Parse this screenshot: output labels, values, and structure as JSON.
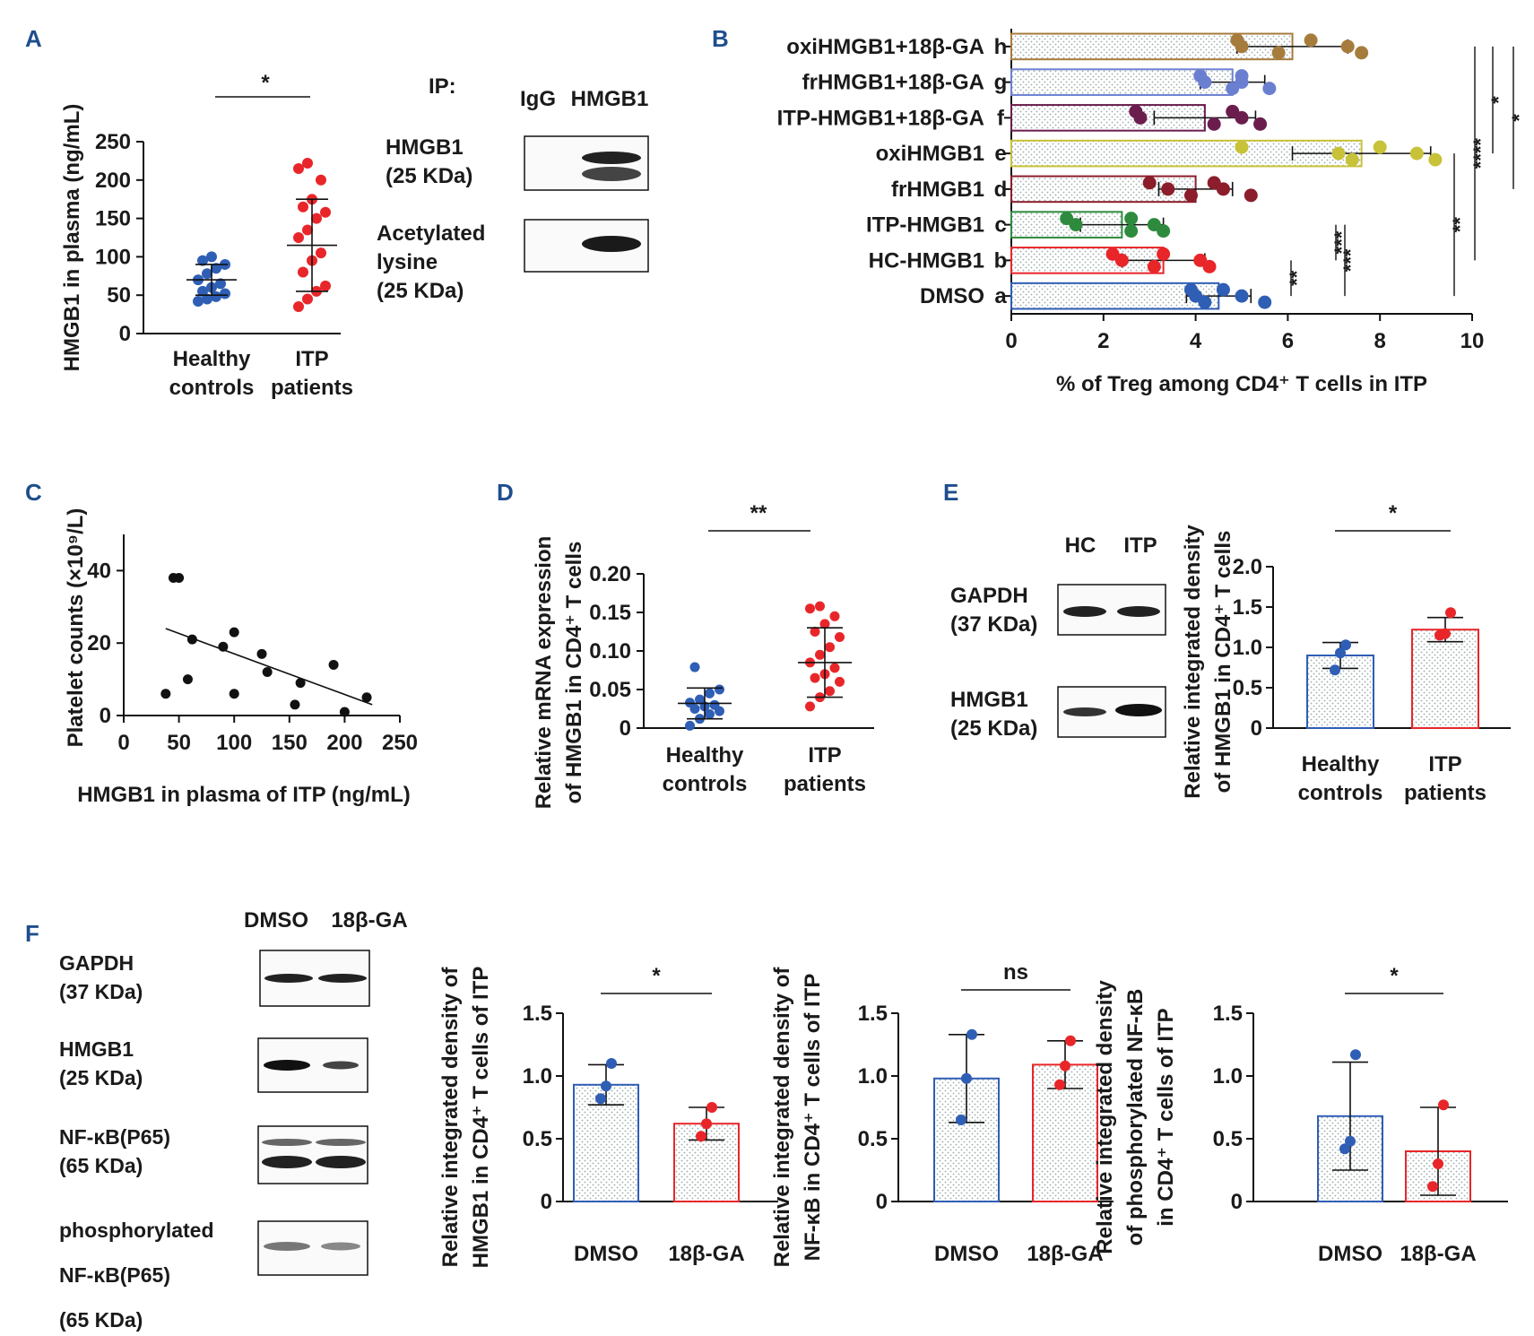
{
  "panels": {
    "A": {
      "letter": "A",
      "chart_data": {
        "type": "scatter",
        "ylabel": "HMGB1 in plasma (ng/mL)",
        "ylim": [
          0,
          250
        ],
        "yticks": [
          "0",
          "50",
          "100",
          "150",
          "200",
          "250"
        ],
        "categories": [
          "Healthy\ncontrols",
          "ITP\npatients"
        ],
        "groups": [
          {
            "name": "Healthy controls",
            "color": "#2f5eb5",
            "mean": 70,
            "sd": 20,
            "points": [
              42,
              45,
              48,
              52,
              55,
              60,
              65,
              70,
              78,
              85,
              90,
              95,
              100
            ]
          },
          {
            "name": "ITP patients",
            "color": "#e8262a",
            "mean": 115,
            "sd": 60,
            "points": [
              35,
              45,
              55,
              62,
              80,
              95,
              105,
              125,
              135,
              150,
              158,
              165,
              175,
              200,
              215,
              222
            ]
          }
        ],
        "significance": "*"
      },
      "blot": {
        "ip_label": "IP:",
        "lanes": [
          "IgG",
          "HMGB1"
        ],
        "rows": [
          "HMGB1\n(25 KDa)",
          "Acetylated\nlysine\n(25 KDa)"
        ]
      }
    },
    "B": {
      "letter": "B",
      "chart_data": {
        "type": "bar",
        "orientation": "horizontal",
        "xlabel": "% of Treg among CD4⁺ T cells in ITP",
        "xlim": [
          0,
          10
        ],
        "xticks": [
          "0",
          "2",
          "4",
          "6",
          "8",
          "10"
        ],
        "series": [
          {
            "name": "oxiHMGB1+18β-GA",
            "letter": "h",
            "value": 6.1,
            "sd": 1.2,
            "color": "#a67c3d",
            "points": [
              4.9,
              5.0,
              5.8,
              6.5,
              7.3,
              7.6
            ]
          },
          {
            "name": "frHMGB1+18β-GA",
            "letter": "g",
            "value": 4.8,
            "sd": 0.7,
            "color": "#6b7fd1",
            "points": [
              4.1,
              4.2,
              4.8,
              5.0,
              5.0,
              5.6
            ]
          },
          {
            "name": "ITP-HMGB1+18β-GA",
            "letter": "f",
            "value": 4.2,
            "sd": 1.1,
            "color": "#6b1e4e",
            "points": [
              2.7,
              2.8,
              4.4,
              4.8,
              5.0,
              5.4
            ]
          },
          {
            "name": "oxiHMGB1",
            "letter": "e",
            "value": 7.6,
            "sd": 1.5,
            "color": "#c7c238",
            "points": [
              5.0,
              7.1,
              7.4,
              8.0,
              8.8,
              9.2
            ]
          },
          {
            "name": "frHMGB1",
            "letter": "d",
            "value": 4.0,
            "sd": 0.8,
            "color": "#8c1d2b",
            "points": [
              3.0,
              3.4,
              3.9,
              4.4,
              4.6,
              5.2
            ]
          },
          {
            "name": "ITP-HMGB1",
            "letter": "c",
            "value": 2.4,
            "sd": 0.9,
            "color": "#2e8b3e",
            "points": [
              1.2,
              1.4,
              2.6,
              2.6,
              3.1,
              3.3
            ]
          },
          {
            "name": "HC-HMGB1",
            "letter": "b",
            "value": 3.3,
            "sd": 0.9,
            "color": "#e8262a",
            "points": [
              2.2,
              2.4,
              3.1,
              3.3,
              4.1,
              4.3
            ]
          },
          {
            "name": "DMSO",
            "letter": "a",
            "value": 4.5,
            "sd": 0.7,
            "color": "#2f5eb5",
            "points": [
              3.9,
              4.0,
              4.2,
              4.6,
              5.0,
              5.5
            ]
          }
        ],
        "significance": [
          {
            "from": "a",
            "to": "b",
            "label": "**"
          },
          {
            "from": "b",
            "to": "c",
            "label": "***"
          },
          {
            "from": "a",
            "to": "c",
            "label": "***"
          },
          {
            "from": "a",
            "to": "e",
            "label": "**"
          },
          {
            "from": "b",
            "to": "h",
            "label": "****"
          },
          {
            "from": "e",
            "to": "h",
            "label": "*"
          },
          {
            "from": "d",
            "to": "h",
            "label": "*"
          }
        ]
      }
    },
    "C": {
      "letter": "C",
      "chart_data": {
        "type": "scatter",
        "xlabel": "HMGB1 in plasma of ITP (ng/mL)",
        "ylabel": "Platelet counts (×10⁹/L)",
        "xlim": [
          0,
          250
        ],
        "ylim": [
          0,
          50
        ],
        "xticks": [
          "0",
          "50",
          "100",
          "150",
          "200",
          "250"
        ],
        "yticks": [
          "0",
          "20",
          "40"
        ],
        "points": [
          [
            38,
            6
          ],
          [
            45,
            38
          ],
          [
            50,
            38
          ],
          [
            58,
            10
          ],
          [
            62,
            21
          ],
          [
            90,
            19
          ],
          [
            100,
            6
          ],
          [
            100,
            23
          ],
          [
            125,
            17
          ],
          [
            130,
            12
          ],
          [
            155,
            3
          ],
          [
            160,
            9
          ],
          [
            190,
            14
          ],
          [
            200,
            1
          ],
          [
            220,
            5
          ]
        ],
        "fit": [
          [
            38,
            24
          ],
          [
            225,
            3
          ]
        ]
      }
    },
    "D": {
      "letter": "D",
      "chart_data": {
        "type": "scatter",
        "ylabel": "Relative mRNA expression\nof HMGB1  in CD4⁺ T cells",
        "ylim": [
          0,
          0.2
        ],
        "yticks": [
          "0",
          "0.05",
          "0.10",
          "0.15",
          "0.20"
        ],
        "categories": [
          "Healthy\ncontrols",
          "ITP\npatients"
        ],
        "groups": [
          {
            "name": "Healthy controls",
            "color": "#2f5eb5",
            "mean": 0.032,
            "sd": 0.02,
            "points": [
              0.003,
              0.012,
              0.018,
              0.022,
              0.025,
              0.028,
              0.03,
              0.033,
              0.037,
              0.045,
              0.05,
              0.079
            ]
          },
          {
            "name": "ITP patients",
            "color": "#e8262a",
            "mean": 0.085,
            "sd": 0.045,
            "points": [
              0.028,
              0.04,
              0.048,
              0.06,
              0.065,
              0.07,
              0.078,
              0.085,
              0.095,
              0.105,
              0.118,
              0.125,
              0.135,
              0.145,
              0.155,
              0.158
            ]
          }
        ],
        "significance": "**"
      }
    },
    "E": {
      "letter": "E",
      "blot": {
        "lanes": [
          "HC",
          "ITP"
        ],
        "rows": [
          "GAPDH\n(37 KDa)",
          "HMGB1\n(25 KDa)"
        ]
      },
      "chart_data": {
        "type": "bar",
        "ylabel": "Relative integrated density\nof HMGB1 in CD4⁺ T cells",
        "ylim": [
          0,
          2.0
        ],
        "yticks": [
          "0",
          "0.5",
          "1.0",
          "1.5",
          "2.0"
        ],
        "categories": [
          "Healthy\ncontrols",
          "ITP\npatients"
        ],
        "values": [
          0.9,
          1.22
        ],
        "sd": [
          0.16,
          0.15
        ],
        "points": [
          [
            0.72,
            0.93,
            1.03
          ],
          [
            1.15,
            1.17,
            1.43
          ]
        ],
        "colors": [
          "#2f5eb5",
          "#e8262a"
        ],
        "significance": "*"
      }
    },
    "F": {
      "letter": "F",
      "blot": {
        "lanes": [
          "DMSO",
          "18β-GA"
        ],
        "rows": [
          "GAPDH\n(37 KDa)",
          "HMGB1\n(25 KDa)",
          "NF-κB(P65)\n(65 KDa)",
          "phosphorylated\nNF-κB(P65)\n(65 KDa)"
        ]
      },
      "charts": [
        {
          "type": "bar",
          "ylabel": "Relative integrated density of\nHMGB1 in CD4⁺ T cells of ITP",
          "ylim": [
            0,
            1.5
          ],
          "yticks": [
            "0",
            "0.5",
            "1.0",
            "1.5"
          ],
          "categories": [
            "DMSO",
            "18β-GA"
          ],
          "values": [
            0.93,
            0.62
          ],
          "sd": [
            0.16,
            0.13
          ],
          "points": [
            [
              0.82,
              0.92,
              1.1
            ],
            [
              0.52,
              0.62,
              0.75
            ]
          ],
          "colors": [
            "#2f5eb5",
            "#e8262a"
          ],
          "significance": "*"
        },
        {
          "type": "bar",
          "ylabel": "Relative integrated density of\nNF-κB in CD4⁺ T cells of ITP",
          "ylim": [
            0,
            1.5
          ],
          "yticks": [
            "0",
            "0.5",
            "1.0",
            "1.5"
          ],
          "categories": [
            "DMSO",
            "18β-GA"
          ],
          "values": [
            0.98,
            1.09
          ],
          "sd": [
            0.35,
            0.19
          ],
          "points": [
            [
              0.65,
              0.98,
              1.33
            ],
            [
              0.93,
              1.08,
              1.28
            ]
          ],
          "colors": [
            "#2f5eb5",
            "#e8262a"
          ],
          "significance": "ns"
        },
        {
          "type": "bar",
          "ylabel": "Relative integrated density\nof phosphorylated NF-κB\nin CD4⁺ T cells of ITP",
          "ylim": [
            0,
            1.5
          ],
          "yticks": [
            "0",
            "0.5",
            "1.0",
            "1.5"
          ],
          "categories": [
            "DMSO",
            "18β-GA"
          ],
          "values": [
            0.68,
            0.4
          ],
          "sd": [
            0.43,
            0.35
          ],
          "points": [
            [
              0.42,
              0.48,
              1.17
            ],
            [
              0.12,
              0.3,
              0.77
            ]
          ],
          "colors": [
            "#2f5eb5",
            "#e8262a"
          ],
          "significance": "*"
        }
      ]
    }
  }
}
